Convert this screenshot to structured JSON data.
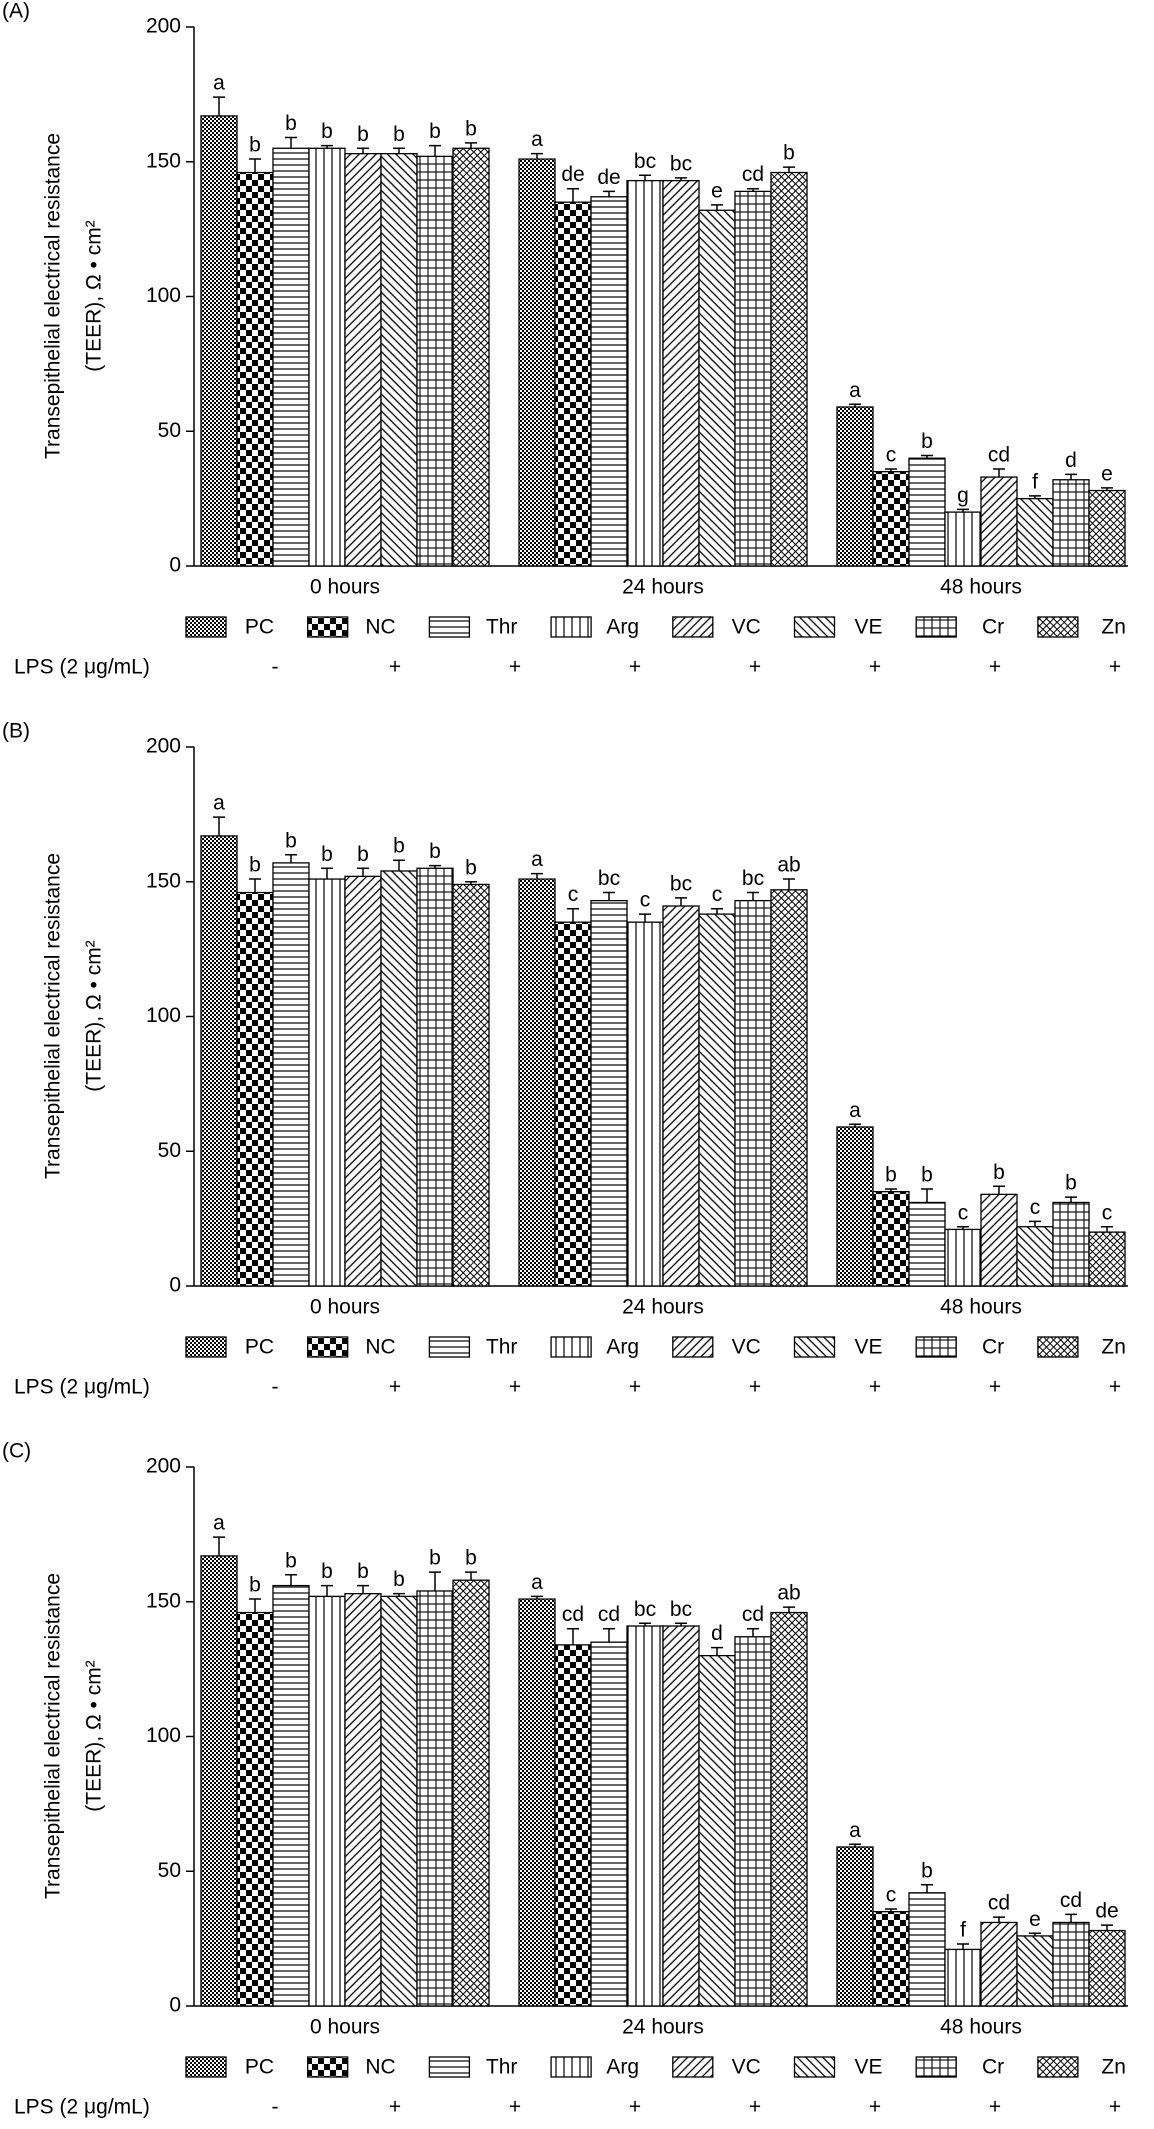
{
  "chart_data": [
    {
      "type": "bar",
      "panel_label": "(A)",
      "ylabel": [
        "Transepithelial electrical resistance",
        "(TEER), Ω • cm²"
      ],
      "categories": [
        "0 hours",
        "24 hours",
        "48 hours"
      ],
      "ylim": [
        0,
        200
      ],
      "yticks": [
        0,
        50,
        100,
        150,
        200
      ],
      "lps_label": "LPS (2 μg/mL)",
      "series": [
        {
          "name": "PC",
          "lps": "-",
          "values": [
            167,
            151,
            59
          ],
          "errors": [
            7,
            2,
            1
          ],
          "letters": [
            "a",
            "a",
            "a"
          ]
        },
        {
          "name": "NC",
          "lps": "+",
          "values": [
            146,
            135,
            35
          ],
          "errors": [
            5,
            5,
            1
          ],
          "letters": [
            "b",
            "de",
            "c"
          ]
        },
        {
          "name": "Thr",
          "lps": "+",
          "values": [
            155,
            137,
            40
          ],
          "errors": [
            4,
            2,
            1
          ],
          "letters": [
            "b",
            "de",
            "b"
          ]
        },
        {
          "name": "Arg",
          "lps": "+",
          "values": [
            155,
            143,
            20
          ],
          "errors": [
            1,
            2,
            1
          ],
          "letters": [
            "b",
            "bc",
            "g"
          ]
        },
        {
          "name": "VC",
          "lps": "+",
          "values": [
            153,
            143,
            33
          ],
          "errors": [
            2,
            1,
            3
          ],
          "letters": [
            "b",
            "bc",
            "cd"
          ]
        },
        {
          "name": "VE",
          "lps": "+",
          "values": [
            153,
            132,
            25
          ],
          "errors": [
            2,
            2,
            1
          ],
          "letters": [
            "b",
            "e",
            "f"
          ]
        },
        {
          "name": "Cr",
          "lps": "+",
          "values": [
            152,
            139,
            32
          ],
          "errors": [
            4,
            1,
            2
          ],
          "letters": [
            "b",
            "cd",
            "d"
          ]
        },
        {
          "name": "Zn",
          "lps": "+",
          "values": [
            155,
            146,
            28
          ],
          "errors": [
            2,
            2,
            1
          ],
          "letters": [
            "b",
            "b",
            "e"
          ]
        }
      ]
    },
    {
      "type": "bar",
      "panel_label": "(B)",
      "ylabel": [
        "Transepithelial electrical resistance",
        "(TEER), Ω • cm²"
      ],
      "categories": [
        "0 hours",
        "24 hours",
        "48 hours"
      ],
      "ylim": [
        0,
        200
      ],
      "yticks": [
        0,
        50,
        100,
        150,
        200
      ],
      "lps_label": "LPS (2 μg/mL)",
      "series": [
        {
          "name": "PC",
          "lps": "-",
          "values": [
            167,
            151,
            59
          ],
          "errors": [
            7,
            2,
            1
          ],
          "letters": [
            "a",
            "a",
            "a"
          ]
        },
        {
          "name": "NC",
          "lps": "+",
          "values": [
            146,
            135,
            35
          ],
          "errors": [
            5,
            5,
            1
          ],
          "letters": [
            "b",
            "c",
            "b"
          ]
        },
        {
          "name": "Thr",
          "lps": "+",
          "values": [
            157,
            143,
            31
          ],
          "errors": [
            3,
            3,
            5
          ],
          "letters": [
            "b",
            "bc",
            "b"
          ]
        },
        {
          "name": "Arg",
          "lps": "+",
          "values": [
            151,
            135,
            21
          ],
          "errors": [
            4,
            3,
            1
          ],
          "letters": [
            "b",
            "c",
            "c"
          ]
        },
        {
          "name": "VC",
          "lps": "+",
          "values": [
            152,
            141,
            34
          ],
          "errors": [
            3,
            3,
            3
          ],
          "letters": [
            "b",
            "bc",
            "b"
          ]
        },
        {
          "name": "VE",
          "lps": "+",
          "values": [
            154,
            138,
            22
          ],
          "errors": [
            4,
            2,
            2
          ],
          "letters": [
            "b",
            "c",
            "c"
          ]
        },
        {
          "name": "Cr",
          "lps": "+",
          "values": [
            155,
            143,
            31
          ],
          "errors": [
            1,
            3,
            2
          ],
          "letters": [
            "b",
            "bc",
            "b"
          ]
        },
        {
          "name": "Zn",
          "lps": "+",
          "values": [
            149,
            147,
            20
          ],
          "errors": [
            1,
            4,
            2
          ],
          "letters": [
            "b",
            "ab",
            "c"
          ]
        }
      ]
    },
    {
      "type": "bar",
      "panel_label": "(C)",
      "ylabel": [
        "Transepithelial electrical resistance",
        "(TEER), Ω • cm²"
      ],
      "categories": [
        "0 hours",
        "24 hours",
        "48 hours"
      ],
      "ylim": [
        0,
        200
      ],
      "yticks": [
        0,
        50,
        100,
        150,
        200
      ],
      "lps_label": "LPS (2 μg/mL)",
      "series": [
        {
          "name": "PC",
          "lps": "-",
          "values": [
            167,
            151,
            59
          ],
          "errors": [
            7,
            1,
            1
          ],
          "letters": [
            "a",
            "a",
            "a"
          ]
        },
        {
          "name": "NC",
          "lps": "+",
          "values": [
            146,
            134,
            35
          ],
          "errors": [
            5,
            6,
            1
          ],
          "letters": [
            "b",
            "cd",
            "c"
          ]
        },
        {
          "name": "Thr",
          "lps": "+",
          "values": [
            156,
            135,
            42
          ],
          "errors": [
            4,
            5,
            3
          ],
          "letters": [
            "b",
            "cd",
            "b"
          ]
        },
        {
          "name": "Arg",
          "lps": "+",
          "values": [
            152,
            141,
            21
          ],
          "errors": [
            4,
            1,
            2
          ],
          "letters": [
            "b",
            "bc",
            "f"
          ]
        },
        {
          "name": "VC",
          "lps": "+",
          "values": [
            153,
            141,
            31
          ],
          "errors": [
            3,
            1,
            2
          ],
          "letters": [
            "b",
            "bc",
            "cd"
          ]
        },
        {
          "name": "VE",
          "lps": "+",
          "values": [
            152,
            130,
            26
          ],
          "errors": [
            1,
            3,
            1
          ],
          "letters": [
            "b",
            "d",
            "e"
          ]
        },
        {
          "name": "Cr",
          "lps": "+",
          "values": [
            154,
            137,
            31
          ],
          "errors": [
            7,
            3,
            3
          ],
          "letters": [
            "b",
            "cd",
            "cd"
          ]
        },
        {
          "name": "Zn",
          "lps": "+",
          "values": [
            158,
            146,
            28
          ],
          "errors": [
            3,
            2,
            2
          ],
          "letters": [
            "b",
            "ab",
            "de"
          ]
        }
      ]
    }
  ]
}
